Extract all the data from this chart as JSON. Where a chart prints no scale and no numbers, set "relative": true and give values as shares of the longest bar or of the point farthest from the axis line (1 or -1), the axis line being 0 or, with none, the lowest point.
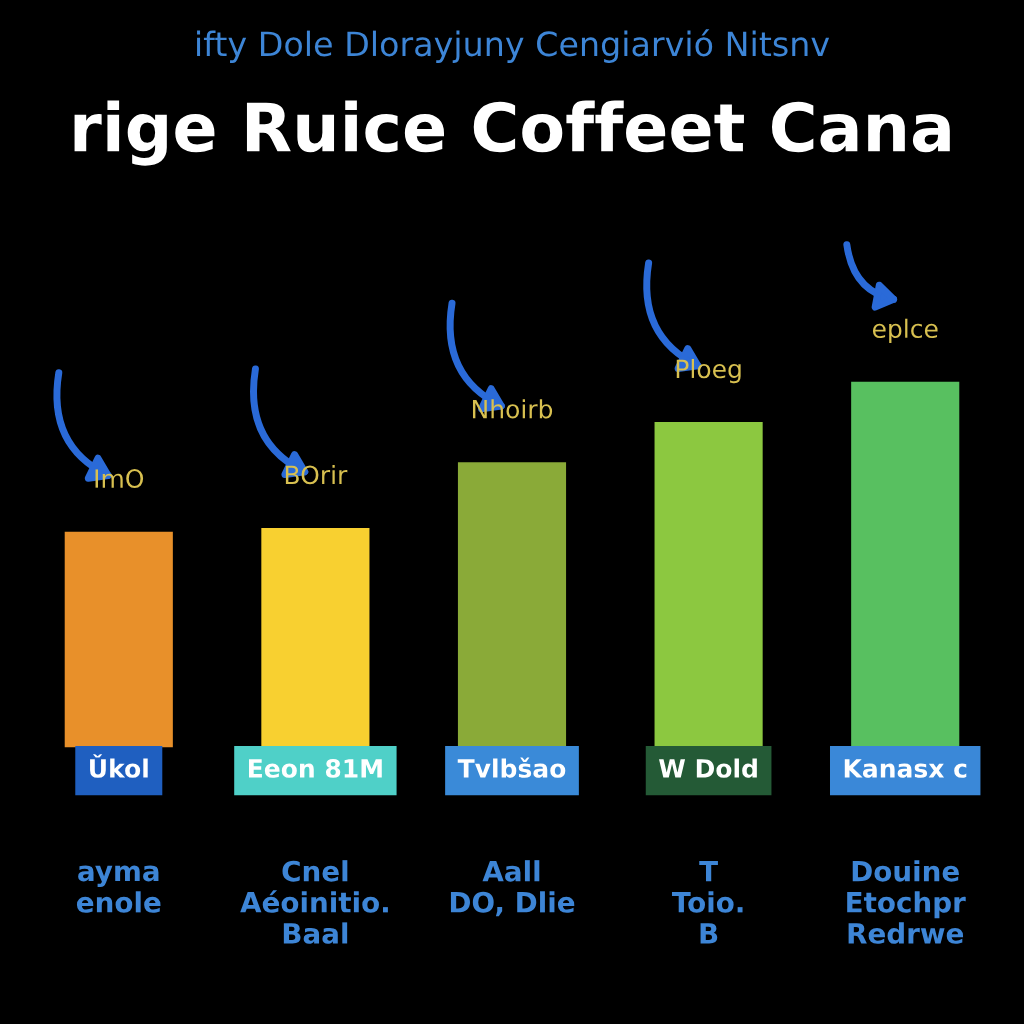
{
  "chart_data": {
    "type": "bar",
    "relative": true,
    "title": "rige Ruice Coffeet Cana",
    "subtitle": "ifty Dole Dlorayjuny Cengiarvió Nitsnv",
    "categories": [
      "Ǔkol",
      "Eeon 81M",
      "Tvlbšao",
      "W Dold",
      "Kanasx c"
    ],
    "values": [
      0.59,
      0.6,
      0.78,
      0.89,
      1.0
    ],
    "colors": [
      "#e8902a",
      "#f8d030",
      "#8aaa38",
      "#8cc840",
      "#58c060"
    ],
    "annotations": [
      {
        "text": "ImO",
        "x": "Ǔkol",
        "y": 0.59
      },
      {
        "text": "BOrir",
        "x": "Eeon 81M",
        "y": 0.6
      },
      {
        "text": "Nhoirb",
        "x": "Tvlbšao",
        "y": 0.78
      },
      {
        "text": "Ploeg",
        "x": "W Dold",
        "y": 0.89
      },
      {
        "text": "eplce",
        "x": "Kanasx c",
        "y": 1.0
      },
      "ayma\nenole",
      "Cnel\nAéoinitio.\nBaal",
      "Aall\nDO, Dlie",
      "T\nToio.\nB",
      "Douine\nEtochpr\nRedrwe"
    ]
  }
}
